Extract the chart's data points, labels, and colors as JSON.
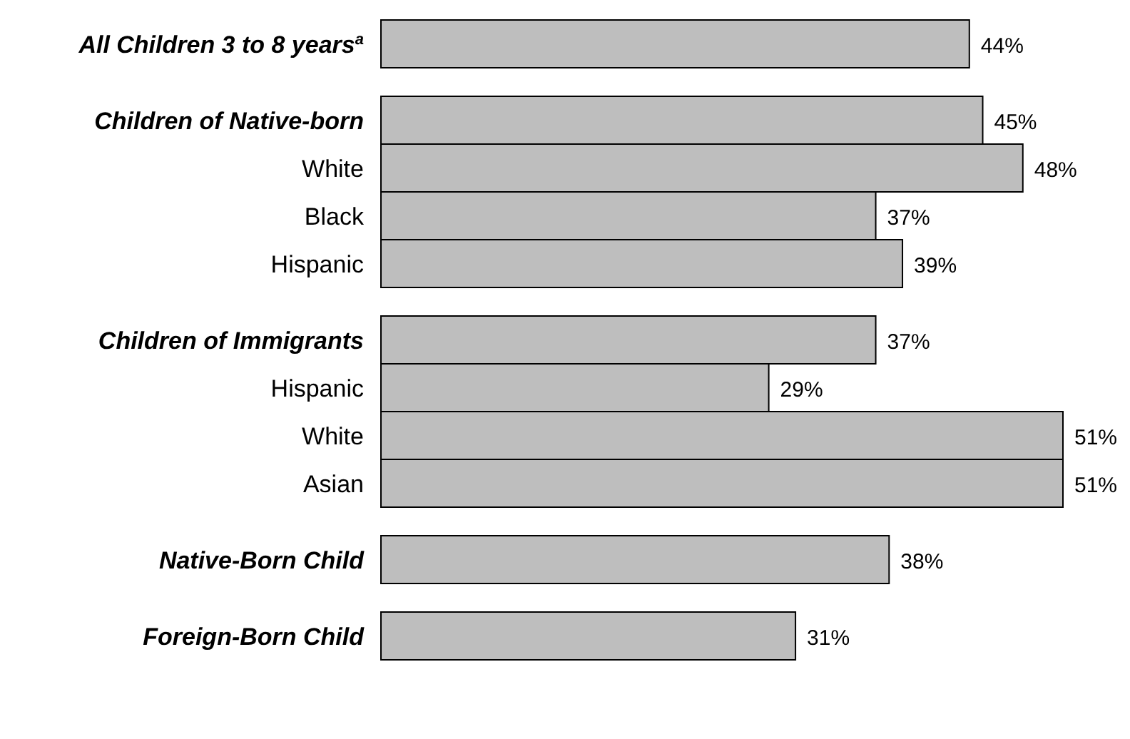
{
  "chart_data": {
    "type": "bar",
    "orientation": "horizontal",
    "data_labels": true,
    "color": "#bebebe",
    "categories": [
      "All Children 3 to 8 years$^{a}$",
      null,
      "Children of Native-born",
      "White",
      "Black",
      "Hispanic",
      null,
      "Children of Immigrants",
      "Hispanic",
      "White",
      "Asian",
      null,
      "Native-Born Child",
      null,
      "Foreign-Born Child"
    ],
    "values": [
      44,
      null,
      45,
      48,
      37,
      39,
      null,
      37,
      29,
      51,
      51,
      null,
      38,
      null,
      31
    ],
    "value_labels": [
      "44%",
      null,
      "45%",
      "48%",
      "37%",
      "39%",
      null,
      "37%",
      "29%",
      "51%",
      "51%",
      null,
      "38%",
      null,
      "31%"
    ]
  }
}
